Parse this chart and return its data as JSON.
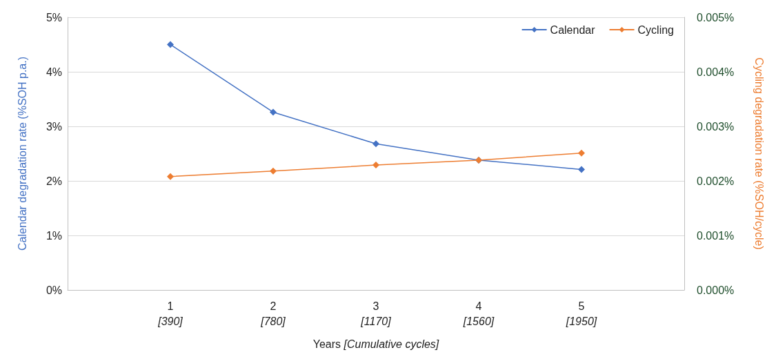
{
  "chart_data": {
    "type": "line",
    "categories": [
      "1\n[390]",
      "2\n[780]",
      "3\n[1170]",
      "4\n[1560]",
      "5\n[1950]"
    ],
    "xlabel": "Years [Cumulative cycles]",
    "ylabel": "Calendar degradation rate (%SOH p.a.)",
    "y2label": "Cycling degradation rate (%SOH/cycle)",
    "series": [
      {
        "name": "Calendar",
        "color": "#4472c4",
        "values": [
          4.5,
          3.26,
          2.68,
          2.38,
          2.21
        ]
      },
      {
        "name": "Cycling",
        "color": "#ed7d31",
        "axis": "y2",
        "values": [
          0.00208,
          0.00218,
          0.00229,
          0.00238,
          0.00251
        ]
      }
    ],
    "ylim": [
      0,
      5
    ],
    "yticks": [
      {
        "value": 0,
        "label": "0%"
      },
      {
        "value": 1,
        "label": "1%"
      },
      {
        "value": 2,
        "label": "2%"
      },
      {
        "value": 3,
        "label": "3%"
      },
      {
        "value": 4,
        "label": "4%"
      },
      {
        "value": 5,
        "label": "5%"
      }
    ],
    "y2lim": [
      0,
      0.005
    ],
    "y2ticks": [
      {
        "value": 0,
        "label": "0.000%"
      },
      {
        "value": 0.001,
        "label": "0.001%"
      },
      {
        "value": 0.002,
        "label": "0.002%"
      },
      {
        "value": 0.003,
        "label": "0.003%"
      },
      {
        "value": 0.004,
        "label": "0.004%"
      },
      {
        "value": 0.005,
        "label": "0.005%"
      }
    ],
    "grid": "y",
    "legend": "top right",
    "marker": "diamond",
    "line_style": "solid"
  }
}
